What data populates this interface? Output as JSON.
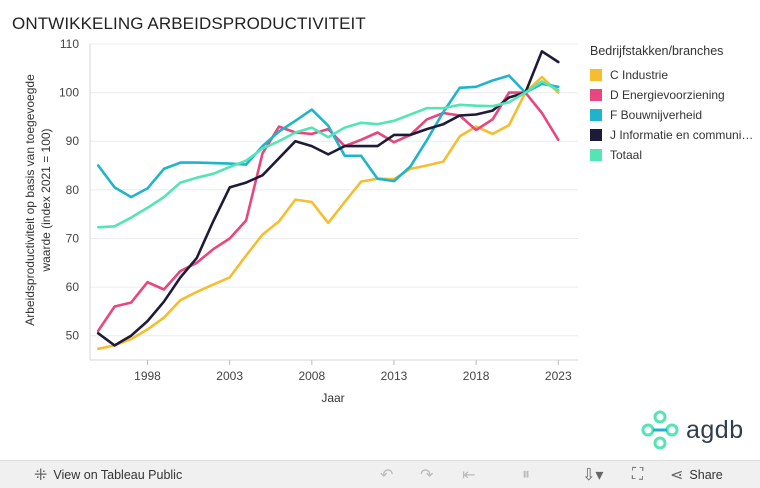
{
  "page": {
    "title": "ONTWIKKELING ARBEIDSPRODUCTIVITEIT"
  },
  "legend": {
    "title": "Bedrijfstakken/branches"
  },
  "chart_data": {
    "type": "line",
    "title": "ONTWIKKELING ARBEIDSPRODUCTIVITEIT",
    "xlabel": "Jaar",
    "ylabel": "Arbeidsproductiviteit op basis van toegevoegde waarde (index 2021 = 100)",
    "xlim": [
      1994.5,
      2024.2
    ],
    "ylim": [
      45,
      110
    ],
    "xticks": [
      1998,
      2003,
      2008,
      2013,
      2018,
      2023
    ],
    "yticks": [
      50,
      60,
      70,
      80,
      90,
      100,
      110
    ],
    "grid": true,
    "legend_position": "right",
    "x": [
      1995,
      1996,
      1997,
      1998,
      1999,
      2000,
      2001,
      2002,
      2003,
      2004,
      2005,
      2006,
      2007,
      2008,
      2009,
      2010,
      2011,
      2012,
      2013,
      2014,
      2015,
      2016,
      2017,
      2018,
      2019,
      2020,
      2021,
      2022,
      2023
    ],
    "series": [
      {
        "name": "C Industrie",
        "color": "#f6be2f",
        "values": [
          47.3,
          48.0,
          49.3,
          51.3,
          53.7,
          57.3,
          59.0,
          60.5,
          62.0,
          66.5,
          70.8,
          73.5,
          78.0,
          77.5,
          73.2,
          77.5,
          81.7,
          82.3,
          82.2,
          84.3,
          85.0,
          85.8,
          91.0,
          93.0,
          91.5,
          93.3,
          100.0,
          103.2,
          100.0
        ]
      },
      {
        "name": "D Energievoorziening",
        "color": "#e8467c",
        "values": [
          51.0,
          56.0,
          56.8,
          61.0,
          59.5,
          63.3,
          65.0,
          67.8,
          70.0,
          73.7,
          87.5,
          93.0,
          91.8,
          91.5,
          92.5,
          89.0,
          90.3,
          91.8,
          89.8,
          91.3,
          94.5,
          95.8,
          95.3,
          92.3,
          94.5,
          100.0,
          100.0,
          95.8,
          90.3
        ]
      },
      {
        "name": "F Bouwnijverheid",
        "color": "#1fb4cc",
        "values": [
          85.0,
          80.5,
          78.5,
          80.3,
          84.3,
          85.6,
          85.6,
          85.5,
          85.4,
          85.2,
          89.0,
          92.0,
          94.2,
          96.5,
          93.2,
          87.0,
          87.0,
          82.3,
          81.8,
          84.8,
          90.2,
          96.0,
          101.0,
          101.2,
          102.5,
          103.5,
          100.0,
          101.8,
          101.2
        ]
      },
      {
        "name": "J Informatie en communicatie",
        "color": "#1e1b38",
        "values": [
          50.5,
          48.0,
          50.0,
          53.0,
          57.0,
          62.0,
          66.0,
          73.5,
          80.5,
          81.5,
          83.0,
          86.5,
          90.0,
          89.0,
          87.3,
          89.0,
          89.0,
          89.0,
          91.3,
          91.3,
          92.5,
          93.5,
          95.3,
          95.5,
          96.3,
          99.0,
          100.0,
          108.5,
          106.3
        ]
      },
      {
        "name": "Totaal",
        "color": "#55e5b4",
        "values": [
          72.3,
          72.5,
          74.3,
          76.3,
          78.5,
          81.5,
          82.5,
          83.3,
          84.7,
          86.0,
          88.5,
          90.0,
          91.8,
          92.8,
          90.8,
          92.8,
          93.8,
          93.5,
          94.2,
          95.5,
          96.8,
          96.8,
          97.5,
          97.3,
          97.2,
          98.0,
          100.0,
          102.3,
          100.5
        ]
      }
    ]
  },
  "branding": {
    "logo_text": "agdb"
  },
  "toolbar": {
    "view_label": "View on Tableau Public",
    "share_label": "Share",
    "icons": [
      "undo-icon",
      "redo-icon",
      "revert-icon",
      "pause-icon",
      "download-icon",
      "fullscreen-icon",
      "share-icon"
    ]
  }
}
